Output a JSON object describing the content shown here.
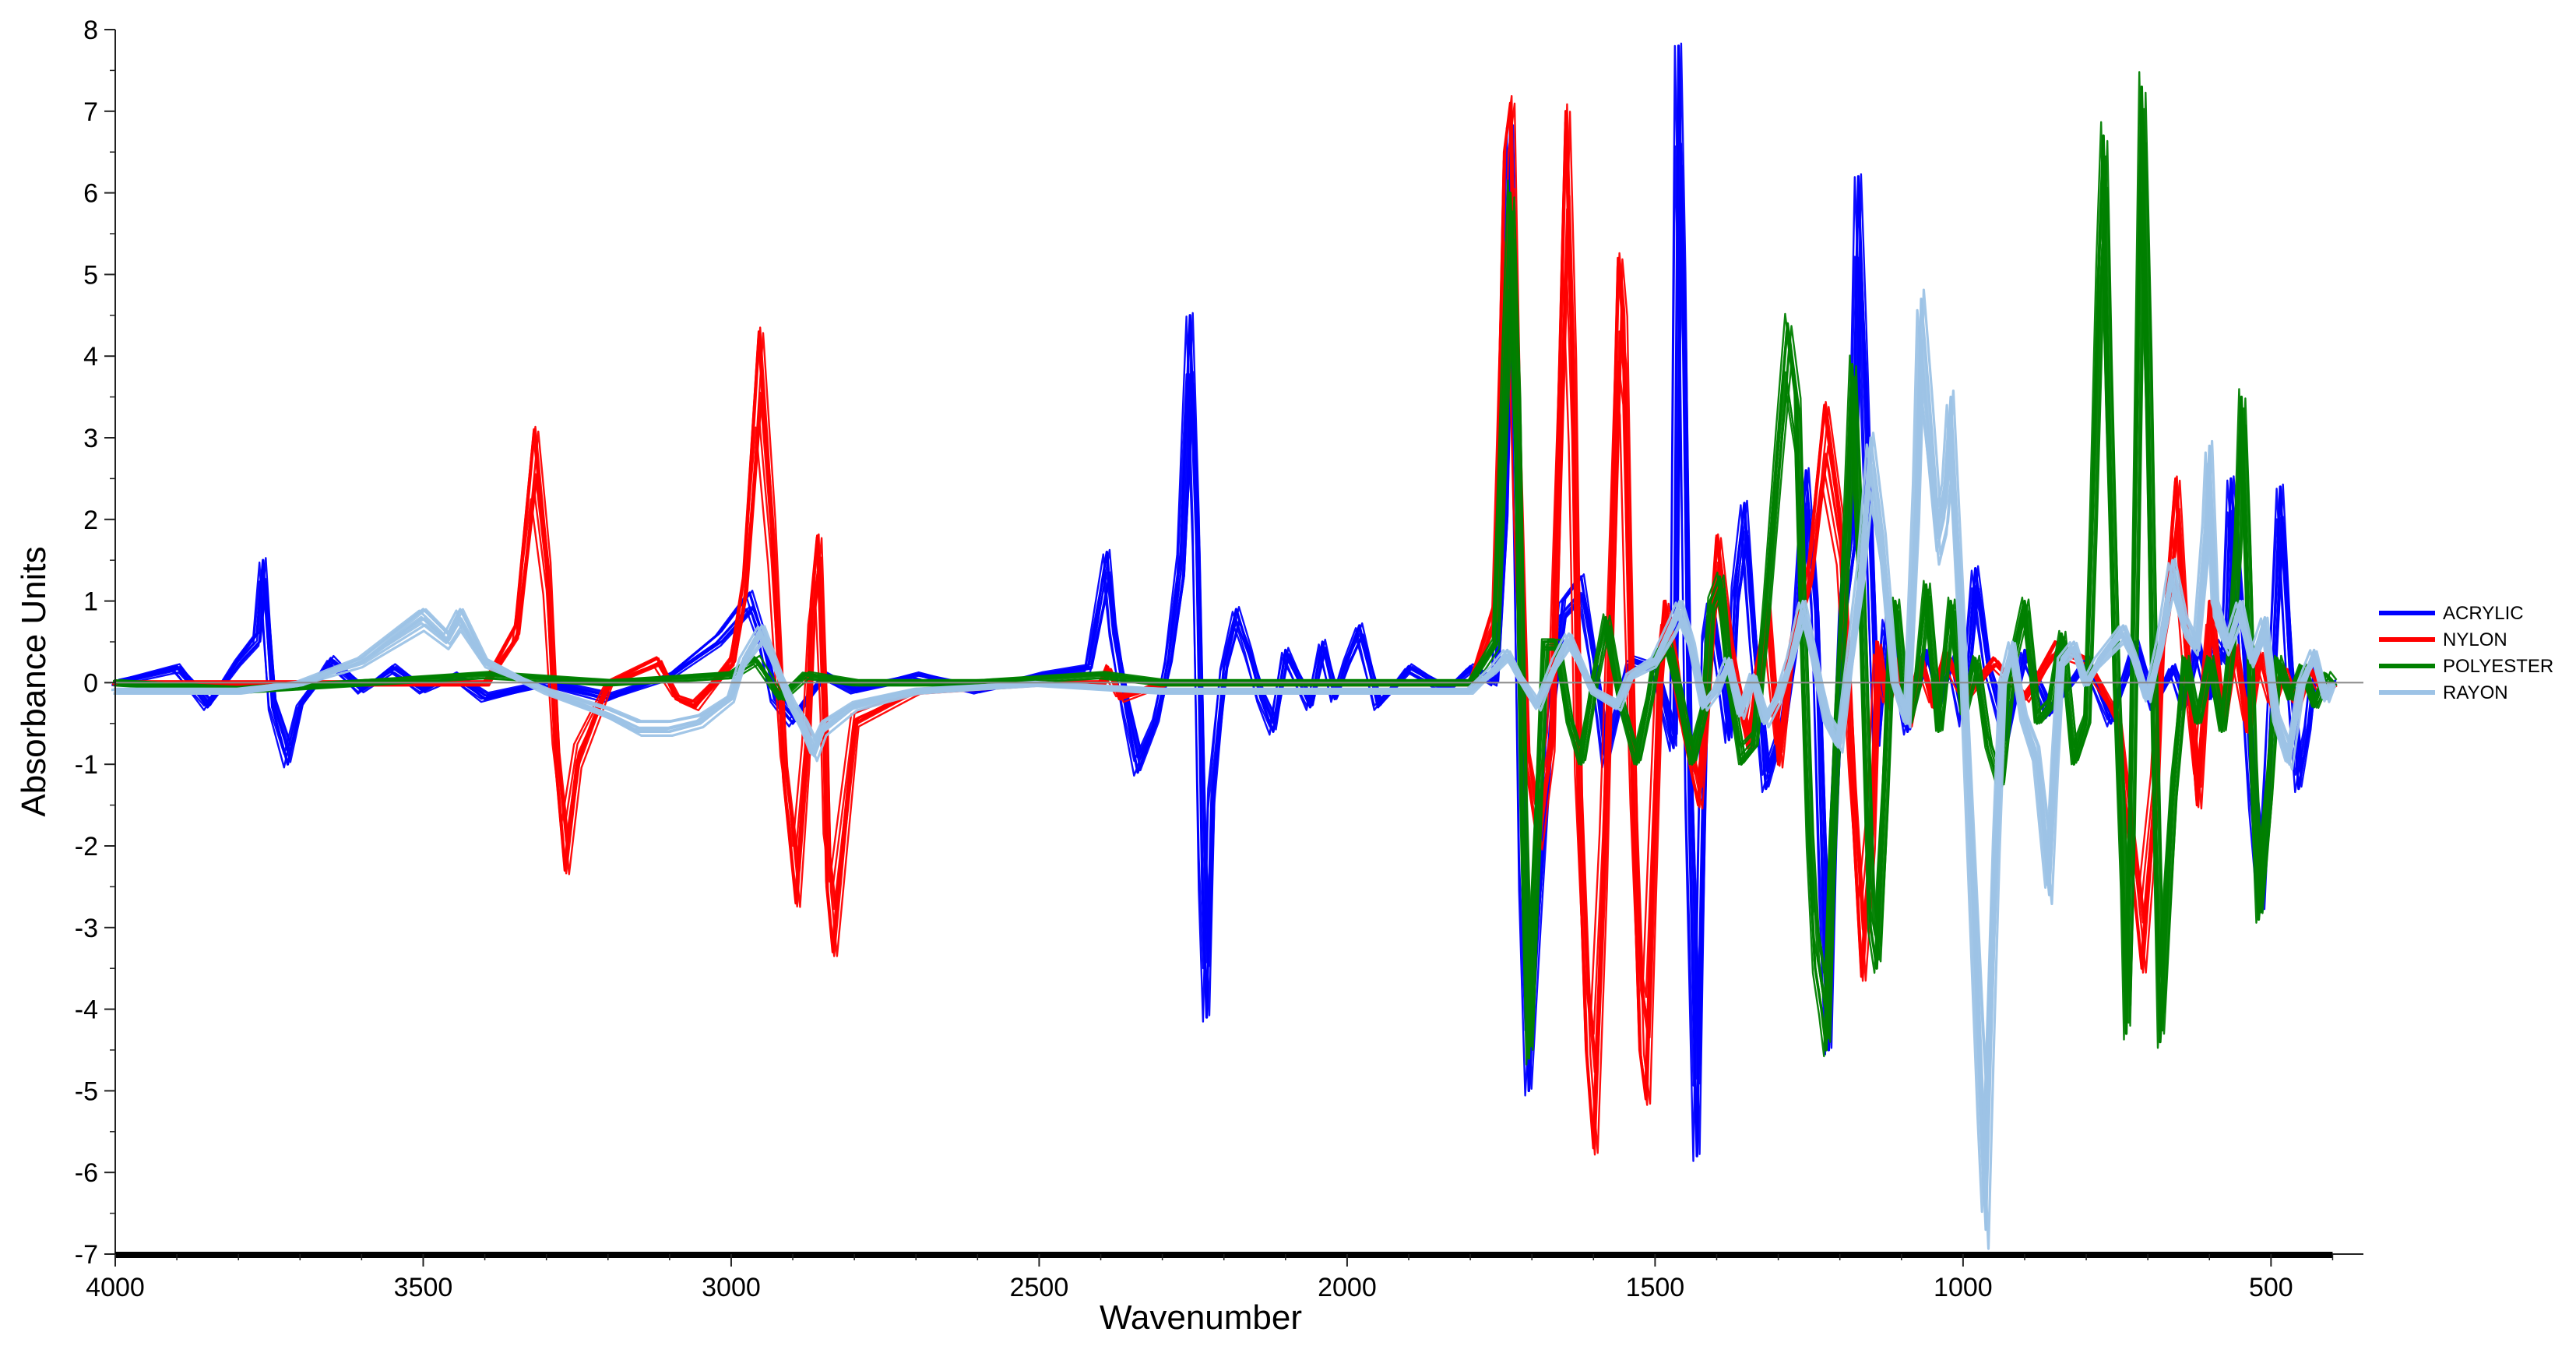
{
  "chart_data": {
    "type": "line",
    "xlabel": "Wavenumber",
    "ylabel": "Absorbance Units",
    "xlim": [
      4000,
      350
    ],
    "ylim": [
      -7,
      8
    ],
    "x_ticks": [
      4000,
      3500,
      3000,
      2500,
      2000,
      1500,
      1000,
      500
    ],
    "y_ticks": [
      -7,
      -6,
      -5,
      -4,
      -3,
      -2,
      -1,
      0,
      1,
      2,
      3,
      4,
      5,
      6,
      7,
      8
    ],
    "x_tick_labels": [
      "4000",
      "3500",
      "3000",
      "2500",
      "2000",
      "1500",
      "1000",
      "500"
    ],
    "y_tick_labels": [
      "-7",
      "-6",
      "-5",
      "-4",
      "-3",
      "-2",
      "-1",
      "0",
      "1",
      "2",
      "3",
      "4",
      "5",
      "6",
      "7",
      "8"
    ],
    "grid": false,
    "legend_position": "right",
    "curves_per_series": 8,
    "series": [
      {
        "name": "ACRYLIC",
        "color": "#0000ff",
        "x": [
          4000,
          3900,
          3850,
          3800,
          3770,
          3760,
          3745,
          3720,
          3700,
          3650,
          3600,
          3550,
          3500,
          3450,
          3400,
          3300,
          3200,
          3100,
          3020,
          2970,
          2950,
          2930,
          2900,
          2850,
          2800,
          2700,
          2600,
          2500,
          2420,
          2390,
          2380,
          2360,
          2340,
          2310,
          2290,
          2270,
          2255,
          2245,
          2235,
          2228,
          2220,
          2200,
          2180,
          2160,
          2140,
          2120,
          2100,
          2060,
          2040,
          2020,
          2000,
          1980,
          1950,
          1900,
          1840,
          1800,
          1760,
          1745,
          1735,
          1725,
          1715,
          1705,
          1690,
          1670,
          1650,
          1620,
          1600,
          1580,
          1540,
          1500,
          1470,
          1462,
          1455,
          1445,
          1432,
          1425,
          1418,
          1410,
          1395,
          1380,
          1370,
          1355,
          1340,
          1320,
          1290,
          1270,
          1255,
          1240,
          1228,
          1218,
          1210,
          1195,
          1180,
          1170,
          1160,
          1140,
          1125,
          1110,
          1090,
          1060,
          1040,
          1020,
          1000,
          980,
          960,
          930,
          900,
          860,
          800,
          760,
          720,
          690,
          660,
          640,
          620,
          600,
          590,
          575,
          565,
          550,
          530,
          515,
          505,
          495,
          485,
          470,
          455,
          440,
          430,
          410,
          400
        ],
        "y": [
          0.0,
          0.2,
          -0.3,
          0.3,
          0.6,
          1.5,
          -0.3,
          -1.0,
          -0.3,
          0.3,
          -0.1,
          0.2,
          -0.1,
          0.1,
          -0.2,
          0.0,
          -0.2,
          0.1,
          0.6,
          1.1,
          0.6,
          -0.2,
          -0.5,
          0.1,
          -0.1,
          0.1,
          -0.1,
          0.1,
          0.2,
          1.6,
          0.7,
          -0.3,
          -1.1,
          -0.5,
          0.3,
          1.6,
          4.5,
          2.0,
          -2.5,
          -4.1,
          -1.5,
          0.2,
          0.9,
          0.4,
          -0.2,
          -0.6,
          0.4,
          -0.3,
          0.5,
          -0.2,
          0.3,
          0.7,
          -0.3,
          0.2,
          -0.1,
          0.2,
          0.0,
          2.5,
          6.8,
          3.0,
          -2.5,
          -5.0,
          -3.0,
          -0.5,
          1.0,
          1.3,
          0.3,
          -1.0,
          0.3,
          0.2,
          -0.8,
          7.8,
          5.0,
          -1.5,
          -5.8,
          -2.5,
          0.6,
          1.0,
          0.2,
          -0.7,
          1.2,
          2.2,
          0.5,
          -1.3,
          -0.5,
          0.8,
          2.6,
          1.0,
          -2.5,
          -4.5,
          -2.0,
          1.0,
          2.1,
          6.2,
          4.0,
          -0.8,
          0.8,
          0.3,
          -0.6,
          0.4,
          -0.3,
          0.3,
          -0.5,
          1.4,
          0.2,
          -0.7,
          0.4,
          -0.4,
          0.3,
          -0.5,
          0.5,
          -0.3,
          0.2,
          -0.3,
          0.5,
          -0.2,
          0.5,
          0.3,
          2.5,
          1.0,
          -1.5,
          -2.8,
          -1.2,
          0.6,
          2.4,
          0.2,
          -1.3,
          -0.6,
          0.2,
          -0.1,
          0.0
        ]
      },
      {
        "name": "NYLON",
        "color": "#ff0000",
        "x": [
          4000,
          3700,
          3500,
          3400,
          3350,
          3320,
          3300,
          3285,
          3270,
          3250,
          3200,
          3120,
          3090,
          3060,
          3000,
          2980,
          2955,
          2935,
          2915,
          2895,
          2880,
          2870,
          2860,
          2850,
          2845,
          2835,
          2800,
          2700,
          2500,
          2400,
          2390,
          2370,
          2300,
          2100,
          2000,
          1900,
          1800,
          1760,
          1745,
          1735,
          1725,
          1710,
          1690,
          1670,
          1658,
          1645,
          1635,
          1625,
          1612,
          1600,
          1585,
          1570,
          1560,
          1552,
          1545,
          1535,
          1525,
          1515,
          1505,
          1495,
          1485,
          1470,
          1455,
          1430,
          1400,
          1380,
          1350,
          1320,
          1300,
          1280,
          1250,
          1225,
          1200,
          1180,
          1165,
          1150,
          1140,
          1125,
          1110,
          1090,
          1070,
          1050,
          1030,
          1000,
          950,
          900,
          850,
          800,
          750,
          730,
          710,
          690,
          680,
          670,
          655,
          640,
          620,
          600,
          580,
          560,
          540,
          520,
          500,
          480,
          460,
          440,
          420,
          400
        ],
        "y": [
          0.0,
          0.0,
          0.0,
          0.0,
          0.7,
          3.1,
          1.5,
          -1.0,
          -2.3,
          -1.0,
          0.0,
          0.3,
          -0.2,
          -0.3,
          0.3,
          1.3,
          4.3,
          2.0,
          -1.2,
          -2.7,
          -1.0,
          1.0,
          1.8,
          -0.5,
          -2.5,
          -3.3,
          -0.5,
          -0.1,
          0.0,
          0.0,
          0.2,
          -0.2,
          0.0,
          0.0,
          0.0,
          0.0,
          0.0,
          1.0,
          6.5,
          7.1,
          3.0,
          -1.0,
          -2.0,
          -0.8,
          3.0,
          7.0,
          4.0,
          -1.5,
          -4.5,
          -5.7,
          -2.5,
          2.0,
          5.2,
          4.5,
          1.5,
          -2.0,
          -4.5,
          -5.1,
          -2.5,
          0.0,
          1.0,
          0.3,
          -0.6,
          -1.5,
          1.8,
          0.5,
          -0.8,
          1.0,
          -1.0,
          0.5,
          1.5,
          3.4,
          2.0,
          -1.5,
          -3.6,
          -2.0,
          0.5,
          -0.3,
          0.3,
          -0.5,
          0.3,
          -0.3,
          0.4,
          -0.2,
          0.3,
          -0.2,
          0.5,
          0.3,
          -0.5,
          -2.0,
          -3.5,
          -1.5,
          0.5,
          1.0,
          2.5,
          0.5,
          -1.5,
          1.0,
          -0.5,
          0.5,
          -0.6,
          0.4,
          -0.3,
          0.2,
          -0.3,
          0.2,
          -0.1,
          0.0
        ]
      },
      {
        "name": "POLYESTER",
        "color": "#008000",
        "x": [
          4000,
          3800,
          3600,
          3400,
          3200,
          3000,
          2960,
          2920,
          2880,
          2800,
          2600,
          2400,
          2300,
          2200,
          2000,
          1800,
          1760,
          1735,
          1725,
          1715,
          1705,
          1695,
          1680,
          1660,
          1640,
          1620,
          1600,
          1580,
          1555,
          1530,
          1510,
          1500,
          1480,
          1460,
          1440,
          1420,
          1410,
          1395,
          1380,
          1360,
          1340,
          1320,
          1300,
          1285,
          1270,
          1262,
          1250,
          1240,
          1230,
          1222,
          1215,
          1205,
          1195,
          1180,
          1165,
          1150,
          1140,
          1128,
          1118,
          1110,
          1100,
          1090,
          1075,
          1060,
          1040,
          1020,
          1000,
          980,
          960,
          940,
          920,
          900,
          880,
          860,
          840,
          820,
          800,
          790,
          780,
          772,
          765,
          752,
          740,
          735,
          728,
          720,
          710,
          700,
          690,
          680,
          660,
          640,
          620,
          600,
          580,
          565,
          555,
          548,
          540,
          530,
          520,
          505,
          490,
          470,
          450,
          430,
          410,
          400
        ],
        "y": [
          0.0,
          -0.1,
          0.0,
          0.1,
          0.0,
          0.1,
          0.3,
          -0.2,
          0.1,
          0.0,
          0.0,
          0.1,
          0.0,
          0.0,
          0.0,
          0.0,
          0.5,
          6.0,
          3.5,
          -1.5,
          -4.6,
          -2.5,
          0.5,
          0.5,
          -0.5,
          -1.0,
          0.0,
          0.8,
          -0.3,
          -1.0,
          -0.2,
          0.3,
          0.5,
          -0.2,
          -1.0,
          -0.3,
          1.0,
          1.3,
          0.0,
          -1.0,
          -0.8,
          1.0,
          3.0,
          4.4,
          3.5,
          1.0,
          -2.0,
          -3.5,
          -4.0,
          -4.5,
          -2.5,
          -0.5,
          1.0,
          3.9,
          1.0,
          -3.0,
          -3.5,
          -1.5,
          0.5,
          1.0,
          0.2,
          -0.5,
          0.0,
          1.2,
          -0.6,
          1.0,
          -0.4,
          0.3,
          -0.8,
          -1.3,
          0.3,
          1.0,
          -0.5,
          -0.3,
          0.6,
          -1.0,
          -0.5,
          2.0,
          5.0,
          6.7,
          4.0,
          0.0,
          -2.5,
          -4.3,
          -2.0,
          2.0,
          7.3,
          4.0,
          -0.5,
          -4.4,
          -1.5,
          0.3,
          -0.5,
          0.3,
          -0.6,
          0.5,
          1.8,
          3.5,
          1.8,
          -1.0,
          -2.9,
          -1.5,
          0.3,
          -0.2,
          0.2,
          -0.3,
          0.1,
          0.0
        ]
      },
      {
        "name": "RAYON",
        "color": "#9dc3e6",
        "x": [
          4000,
          3900,
          3800,
          3700,
          3600,
          3550,
          3500,
          3460,
          3440,
          3400,
          3300,
          3200,
          3150,
          3100,
          3050,
          3000,
          2980,
          2950,
          2930,
          2900,
          2880,
          2865,
          2850,
          2800,
          2700,
          2500,
          2300,
          2100,
          2000,
          1800,
          1760,
          1740,
          1720,
          1690,
          1660,
          1640,
          1600,
          1560,
          1540,
          1500,
          1470,
          1460,
          1440,
          1420,
          1400,
          1380,
          1360,
          1340,
          1320,
          1300,
          1280,
          1260,
          1240,
          1220,
          1200,
          1180,
          1165,
          1150,
          1130,
          1110,
          1090,
          1075,
          1068,
          1055,
          1040,
          1028,
          1020,
          1010,
          1000,
          990,
          980,
          970,
          963,
          955,
          945,
          935,
          920,
          900,
          880,
          860,
          850,
          840,
          820,
          800,
          780,
          760,
          740,
          720,
          700,
          680,
          660,
          640,
          620,
          605,
          600,
          590,
          570,
          550,
          530,
          510,
          490,
          470,
          450,
          430,
          410,
          400
        ],
        "y": [
          -0.1,
          -0.1,
          -0.1,
          0.0,
          0.3,
          0.6,
          0.9,
          0.6,
          0.9,
          0.3,
          -0.1,
          -0.4,
          -0.6,
          -0.6,
          -0.5,
          -0.2,
          0.3,
          0.7,
          0.3,
          -0.3,
          -0.6,
          -0.9,
          -0.6,
          -0.3,
          -0.1,
          0.0,
          -0.1,
          -0.1,
          -0.1,
          -0.1,
          0.2,
          0.4,
          0.1,
          -0.3,
          0.3,
          0.6,
          -0.1,
          -0.3,
          0.1,
          0.3,
          0.8,
          1.0,
          0.5,
          -0.3,
          -0.1,
          0.3,
          -0.4,
          0.1,
          -0.5,
          -0.2,
          0.3,
          1.0,
          0.3,
          -0.5,
          -0.8,
          0.5,
          1.5,
          3.0,
          1.8,
          0.0,
          -0.5,
          2.5,
          4.7,
          3.5,
          2.0,
          2.5,
          3.5,
          2.0,
          0.5,
          -1.5,
          -3.5,
          -5.5,
          -6.7,
          -4.5,
          -2.0,
          0.0,
          0.5,
          -0.5,
          -1.0,
          -2.6,
          -1.0,
          0.3,
          0.5,
          0.0,
          0.3,
          0.5,
          0.7,
          0.3,
          -0.2,
          0.5,
          1.5,
          0.8,
          0.5,
          2.0,
          2.9,
          1.0,
          0.5,
          1.0,
          0.3,
          0.8,
          -0.5,
          -1.0,
          0.0,
          0.4,
          -0.2,
          0.0
        ]
      }
    ]
  }
}
